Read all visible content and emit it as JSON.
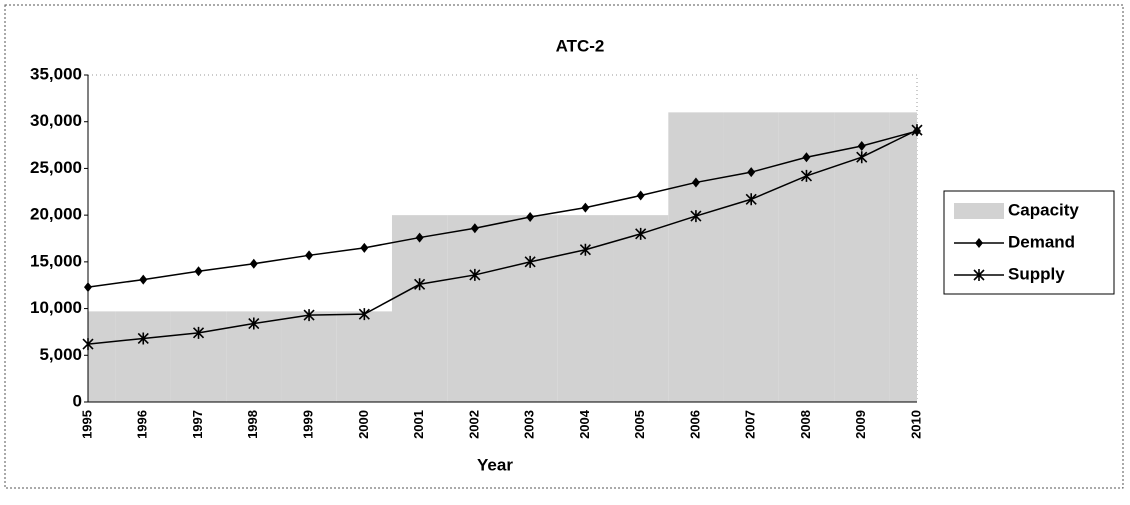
{
  "chart_data": {
    "type": "combo",
    "title": "ATC-2",
    "x_label": "Year",
    "categories": [
      "1995",
      "1996",
      "1997",
      "1998",
      "1999",
      "2000",
      "2001",
      "2002",
      "2003",
      "2004",
      "2005",
      "2006",
      "2007",
      "2008",
      "2009",
      "2010"
    ],
    "series": [
      {
        "name": "Capacity",
        "type": "bar",
        "color": "#d2d2d2",
        "values": [
          9700,
          9700,
          9700,
          9700,
          9700,
          9700,
          20000,
          20000,
          20000,
          20000,
          20000,
          31000,
          31000,
          31000,
          31000,
          31000
        ]
      },
      {
        "name": "Demand",
        "type": "line",
        "marker": "diamond",
        "color": "#000000",
        "values": [
          12300,
          13100,
          14000,
          14800,
          15700,
          16500,
          17600,
          18600,
          19800,
          20800,
          22100,
          23500,
          24600,
          26200,
          27400,
          29000
        ]
      },
      {
        "name": "Supply",
        "type": "line",
        "marker": "x",
        "color": "#000000",
        "values": [
          6200,
          6800,
          7400,
          8400,
          9300,
          9400,
          12600,
          13600,
          15000,
          16300,
          18000,
          19900,
          21700,
          24200,
          26200,
          29100
        ]
      }
    ],
    "ylim": [
      0,
      35000
    ],
    "yticks": [
      0,
      {
        "value": 5000,
        "label": "5,000"
      },
      {
        "value": 10000,
        "label": "10,000"
      },
      {
        "value": 15000,
        "label": "15,000"
      },
      {
        "value": 20000,
        "label": "20,000"
      },
      {
        "value": 25000,
        "label": "25,000"
      },
      {
        "value": 30000,
        "label": "30,000"
      },
      {
        "value": 35000,
        "label": "35,000"
      }
    ],
    "grid": false,
    "legend": "right"
  }
}
